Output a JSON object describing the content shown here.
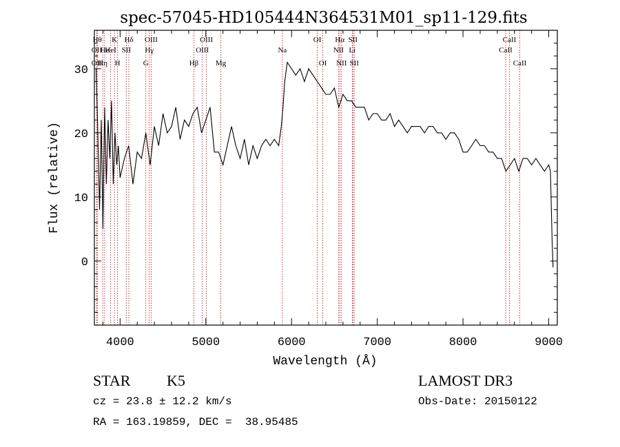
{
  "chart_data": {
    "type": "line",
    "title": "spec-57045-HD105444N364531M01_sp11-129.fits",
    "xlabel": "Wavelength (Å)",
    "ylabel": "Flux (relative)",
    "xlim": [
      3700,
      9100
    ],
    "ylim": [
      -10,
      36
    ],
    "x_ticks": [
      4000,
      5000,
      6000,
      7000,
      8000,
      9000
    ],
    "x_tick_labels": [
      "4000",
      "5000",
      "6000",
      "7000",
      "8000",
      "9000"
    ],
    "y_ticks": [
      0,
      10,
      20,
      30
    ],
    "y_tick_labels": [
      "0",
      "10",
      "20",
      "30"
    ],
    "grid": false,
    "series": [
      {
        "name": "spectrum",
        "x": [
          3720,
          3740,
          3760,
          3780,
          3800,
          3820,
          3840,
          3860,
          3880,
          3900,
          3920,
          3940,
          3960,
          3980,
          4000,
          4050,
          4100,
          4150,
          4200,
          4250,
          4300,
          4350,
          4400,
          4450,
          4500,
          4550,
          4600,
          4650,
          4700,
          4750,
          4800,
          4850,
          4900,
          4950,
          5000,
          5050,
          5100,
          5150,
          5200,
          5250,
          5300,
          5350,
          5400,
          5450,
          5500,
          5550,
          5600,
          5650,
          5700,
          5750,
          5800,
          5850,
          5880,
          5900,
          5920,
          5950,
          6000,
          6050,
          6100,
          6150,
          6200,
          6250,
          6300,
          6350,
          6400,
          6450,
          6500,
          6550,
          6600,
          6650,
          6700,
          6750,
          6800,
          6850,
          6900,
          6950,
          7000,
          7050,
          7100,
          7150,
          7200,
          7250,
          7300,
          7350,
          7400,
          7450,
          7500,
          7550,
          7600,
          7650,
          7700,
          7750,
          7800,
          7850,
          7900,
          7950,
          8000,
          8050,
          8100,
          8150,
          8200,
          8250,
          8300,
          8350,
          8400,
          8450,
          8500,
          8550,
          8600,
          8650,
          8700,
          8750,
          8800,
          8850,
          8900,
          8950,
          9000,
          9020,
          9040,
          9050
        ],
        "y": [
          30,
          20,
          8,
          22,
          5,
          24,
          12,
          22,
          16,
          25,
          12,
          20,
          15,
          18,
          13,
          16,
          18,
          12,
          17,
          16,
          20,
          15,
          21,
          18,
          23,
          20,
          21,
          24,
          19,
          22,
          21,
          23,
          24,
          20,
          22,
          24,
          17,
          17,
          15,
          18,
          21,
          18,
          16,
          19,
          15,
          18,
          16,
          18,
          19,
          18,
          19,
          18,
          21,
          24,
          28,
          31,
          30,
          29,
          30,
          28,
          30,
          29,
          28,
          27,
          26,
          26,
          27,
          24,
          26,
          25,
          25,
          24,
          24,
          24,
          22,
          23,
          23,
          22,
          22,
          23,
          21,
          22,
          21,
          20,
          21,
          21,
          21,
          20,
          21,
          21,
          20,
          20,
          19,
          20,
          20,
          19,
          17,
          17,
          18,
          19,
          18,
          18,
          17,
          17,
          16,
          16,
          14,
          15,
          16,
          14,
          16,
          16,
          15,
          16,
          15,
          14,
          15,
          14,
          3,
          -1
        ]
      }
    ],
    "line_markers": [
      {
        "wavelength": 3734,
        "label": "Hθ",
        "row": 1
      },
      {
        "wavelength": 3727,
        "label": "OII",
        "row": 2
      },
      {
        "wavelength": 3727,
        "label": "OII",
        "row": 3
      },
      {
        "wavelength": 3798,
        "label": "Hη",
        "row": 3
      },
      {
        "wavelength": 3820,
        "label": "He",
        "row": 2
      },
      {
        "wavelength": 3889,
        "label": "HeI",
        "row": 2
      },
      {
        "wavelength": 3934,
        "label": "K",
        "row": 1
      },
      {
        "wavelength": 3970,
        "label": "H",
        "row": 3
      },
      {
        "wavelength": 4072,
        "label": "SII",
        "row": 2
      },
      {
        "wavelength": 4102,
        "label": "Hδ",
        "row": 1
      },
      {
        "wavelength": 4300,
        "label": "G",
        "row": 3
      },
      {
        "wavelength": 4341,
        "label": "Hγ",
        "row": 2
      },
      {
        "wavelength": 4363,
        "label": "OIII",
        "row": 1
      },
      {
        "wavelength": 4861,
        "label": "Hβ",
        "row": 3
      },
      {
        "wavelength": 4959,
        "label": "OIII",
        "row": 2
      },
      {
        "wavelength": 5007,
        "label": "OIII",
        "row": 1
      },
      {
        "wavelength": 5175,
        "label": "Mg",
        "row": 3
      },
      {
        "wavelength": 5893,
        "label": "Na",
        "row": 2
      },
      {
        "wavelength": 6300,
        "label": "OI",
        "row": 1
      },
      {
        "wavelength": 6364,
        "label": "OI",
        "row": 3
      },
      {
        "wavelength": 6548,
        "label": "NII",
        "row": 2
      },
      {
        "wavelength": 6563,
        "label": "Hα",
        "row": 1
      },
      {
        "wavelength": 6583,
        "label": "NII",
        "row": 3
      },
      {
        "wavelength": 6708,
        "label": "Li",
        "row": 2
      },
      {
        "wavelength": 6716,
        "label": "SII",
        "row": 1
      },
      {
        "wavelength": 6731,
        "label": "SII",
        "row": 3
      },
      {
        "wavelength": 8498,
        "label": "CaII",
        "row": 2
      },
      {
        "wavelength": 8542,
        "label": "CaII",
        "row": 1
      },
      {
        "wavelength": 8662,
        "label": "CaII",
        "row": 3
      }
    ]
  },
  "info": {
    "object_class": "STAR",
    "subclass": "K5",
    "survey": "LAMOST DR3",
    "redshift_line": "cz = 23.8 ± 12.2 km/s",
    "obs_date_line": "Obs-Date: 20150122",
    "coords_line": "RA = 163.19859, DEC =  38.95485"
  },
  "colors": {
    "spectrum": "#000000",
    "marker_line": "#c00000",
    "axis": "#000000"
  }
}
